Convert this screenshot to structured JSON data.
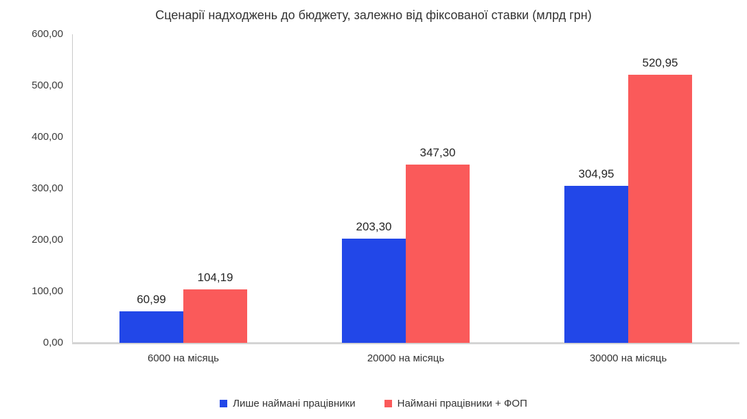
{
  "chart_data": {
    "type": "bar",
    "title": "Сценарії надходжень до бюджету, залежно від фіксованої ставки (млрд грн)",
    "categories": [
      "6000 на місяць",
      "20000 на місяць",
      "30000 на місяць"
    ],
    "series": [
      {
        "name": "Лише наймані працівники",
        "color": "#2247E8",
        "values": [
          60.99,
          203.3,
          304.95
        ],
        "labels": [
          "60,99",
          "203,30",
          "304,95"
        ]
      },
      {
        "name": "Наймані працівники + ФОП",
        "color": "#FA5A5A",
        "values": [
          104.19,
          347.3,
          520.95
        ],
        "labels": [
          "104,19",
          "347,30",
          "520,95"
        ]
      }
    ],
    "ylim": [
      0,
      600
    ],
    "yticks": [
      {
        "value": 0,
        "label": "0,00"
      },
      {
        "value": 100,
        "label": "100,00"
      },
      {
        "value": 200,
        "label": "200,00"
      },
      {
        "value": 300,
        "label": "300,00"
      },
      {
        "value": 400,
        "label": "400,00"
      },
      {
        "value": 500,
        "label": "500,00"
      },
      {
        "value": 600,
        "label": "600,00"
      }
    ],
    "grid": false,
    "legend_position": "bottom"
  }
}
